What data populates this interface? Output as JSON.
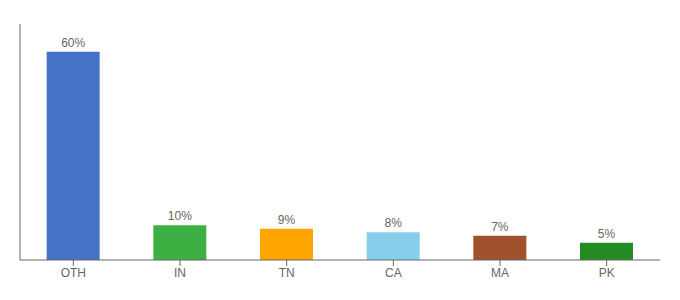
{
  "chart_data": {
    "type": "bar",
    "categories": [
      "OTH",
      "IN",
      "TN",
      "CA",
      "MA",
      "PK"
    ],
    "values": [
      60,
      10,
      9,
      8,
      7,
      5
    ],
    "value_labels": [
      "60%",
      "10%",
      "9%",
      "8%",
      "7%",
      "5%"
    ],
    "colors": [
      "#4472C4",
      "#3CB043",
      "#FFA500",
      "#87CEEB",
      "#A0522D",
      "#228B22"
    ],
    "ylim": [
      0,
      68
    ],
    "data_labels": true,
    "tick_labels": "x",
    "grid": false
  }
}
